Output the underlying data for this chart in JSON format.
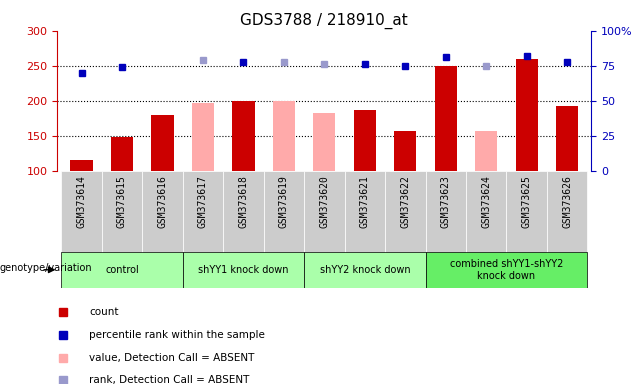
{
  "title": "GDS3788 / 218910_at",
  "samples": [
    "GSM373614",
    "GSM373615",
    "GSM373616",
    "GSM373617",
    "GSM373618",
    "GSM373619",
    "GSM373620",
    "GSM373621",
    "GSM373622",
    "GSM373623",
    "GSM373624",
    "GSM373625",
    "GSM373626"
  ],
  "count_values": [
    115,
    148,
    180,
    null,
    200,
    null,
    null,
    187,
    157,
    250,
    null,
    260,
    193
  ],
  "count_absent_values": [
    null,
    null,
    null,
    197,
    null,
    200,
    183,
    null,
    null,
    null,
    157,
    null,
    null
  ],
  "percentile_rank_present": [
    70,
    74,
    null,
    null,
    78,
    null,
    null,
    76,
    75,
    81,
    null,
    82,
    78
  ],
  "percentile_rank_absent": [
    null,
    null,
    null,
    79,
    null,
    78,
    76,
    null,
    null,
    null,
    75,
    null,
    null
  ],
  "ylim_left": [
    100,
    300
  ],
  "ylim_right": [
    0,
    100
  ],
  "yticks_left": [
    100,
    150,
    200,
    250,
    300
  ],
  "yticks_right": [
    0,
    25,
    50,
    75,
    100
  ],
  "group_labels": [
    "control",
    "shYY1 knock down",
    "shYY2 knock down",
    "combined shYY1-shYY2\nknock down"
  ],
  "group_ranges": [
    [
      0,
      2
    ],
    [
      3,
      5
    ],
    [
      6,
      8
    ],
    [
      9,
      12
    ]
  ],
  "group_colors": [
    "#aaffaa",
    "#aaffaa",
    "#aaffaa",
    "#66ee66"
  ],
  "bar_width": 0.55,
  "count_color": "#cc0000",
  "count_absent_color": "#ffaaaa",
  "rank_present_color": "#0000bb",
  "rank_absent_color": "#9999cc",
  "plot_bg_color": "#ffffff",
  "tick_bg_color": "#cccccc",
  "left_axis_color": "#cc0000",
  "right_axis_color": "#0000bb",
  "legend_items": [
    {
      "label": "count",
      "color": "#cc0000"
    },
    {
      "label": "percentile rank within the sample",
      "color": "#0000bb"
    },
    {
      "label": "value, Detection Call = ABSENT",
      "color": "#ffaaaa"
    },
    {
      "label": "rank, Detection Call = ABSENT",
      "color": "#9999cc"
    }
  ],
  "grid_lines": [
    150,
    200,
    250
  ],
  "genotype_label": "genotype/variation"
}
